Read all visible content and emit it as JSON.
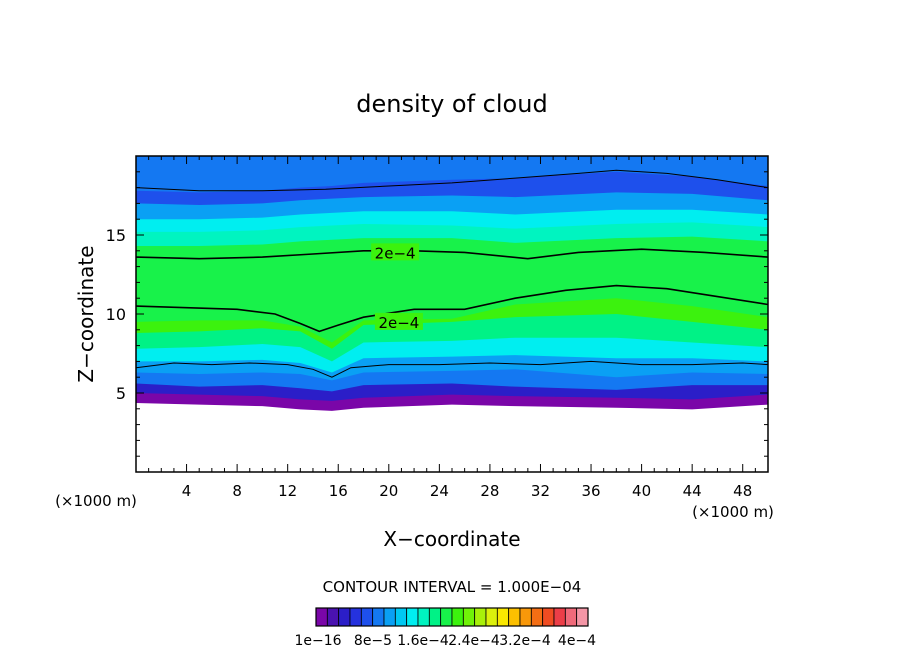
{
  "chart_data": {
    "type": "heatmap",
    "title": "density of cloud",
    "xlabel": "X−coordinate",
    "ylabel": "Z−coordinate",
    "xunit_left": "(×1000 m)",
    "xunit_right": "(×1000 m)",
    "xlim": [
      0,
      50
    ],
    "ylim": [
      0,
      20
    ],
    "xticks": [
      4,
      8,
      12,
      16,
      20,
      24,
      28,
      32,
      36,
      40,
      44,
      48
    ],
    "yticks": [
      5,
      10,
      15
    ],
    "contour_interval_text": "CONTOUR INTERVAL = 1.000E−04",
    "colorbar_labels": [
      "1e−16",
      "8e−5",
      "1.6e−4",
      "2.4e−4",
      "3.2e−4",
      "4e−4"
    ],
    "colorbar_colors": [
      "#7a06a8",
      "#4a12b0",
      "#2b1ec8",
      "#2532de",
      "#1e50ec",
      "#1478f2",
      "#0aa0f4",
      "#00c8f2",
      "#00eef0",
      "#00f4c0",
      "#00f286",
      "#18f24a",
      "#3cf20e",
      "#70f208",
      "#a8f00a",
      "#dcf00c",
      "#fae800",
      "#fcc000",
      "#f8980a",
      "#f46e14",
      "#f04c22",
      "#ec3e48",
      "#f06a7a",
      "#f496a6"
    ],
    "contour_labels": [
      "2e−4",
      "2e−4"
    ],
    "field_bands": [
      {
        "name": "base-purple",
        "color": "#7a06a8",
        "z": [
          5.0,
          4.9,
          4.8,
          4.6,
          4.5,
          4.7,
          4.9,
          4.8,
          4.7,
          4.6,
          4.9
        ]
      },
      {
        "name": "dark-blue",
        "color": "#2b1ec8",
        "z": [
          5.6,
          5.4,
          5.5,
          5.3,
          5.1,
          5.5,
          5.6,
          5.4,
          5.2,
          5.5,
          5.5
        ]
      },
      {
        "name": "blue",
        "color": "#1478f2",
        "z": [
          6.3,
          6.2,
          6.3,
          6.2,
          5.8,
          6.3,
          6.4,
          6.5,
          6.0,
          6.3,
          6.2
        ]
      },
      {
        "name": "light-blue",
        "color": "#0aa0f4",
        "z": [
          7.0,
          7.0,
          7.1,
          6.9,
          6.3,
          7.2,
          7.3,
          7.4,
          7.2,
          7.2,
          7.0
        ]
      },
      {
        "name": "cyan",
        "color": "#00eef0",
        "z": [
          7.8,
          7.9,
          8.1,
          7.9,
          7.0,
          8.2,
          8.3,
          8.5,
          8.5,
          8.2,
          7.9
        ]
      },
      {
        "name": "aqua-green",
        "color": "#00f286",
        "z": [
          8.8,
          8.9,
          9.1,
          8.9,
          7.8,
          9.3,
          9.5,
          9.8,
          10.0,
          9.5,
          9.0
        ]
      },
      {
        "name": "green",
        "color": "#3cf20e",
        "z": [
          9.5,
          9.6,
          9.6,
          9.2,
          8.2,
          9.6,
          9.7,
          10.6,
          11.0,
          10.5,
          9.8
        ]
      },
      {
        "name": "upper-green",
        "color": "#18f24a",
        "z": [
          14.3,
          14.3,
          14.4,
          14.6,
          14.7,
          14.8,
          14.8,
          14.5,
          14.8,
          14.9,
          14.6
        ]
      },
      {
        "name": "upper-aqua",
        "color": "#00f4c0",
        "z": [
          15.2,
          15.2,
          15.3,
          15.5,
          15.6,
          15.7,
          15.6,
          15.4,
          15.7,
          15.8,
          15.5
        ]
      },
      {
        "name": "upper-cyan",
        "color": "#00eef0",
        "z": [
          16.0,
          16.0,
          16.1,
          16.3,
          16.4,
          16.5,
          16.5,
          16.3,
          16.6,
          16.6,
          16.3
        ]
      },
      {
        "name": "upper-light-blue",
        "color": "#0aa0f4",
        "z": [
          17.0,
          16.9,
          17.0,
          17.2,
          17.3,
          17.4,
          17.5,
          17.4,
          17.7,
          17.6,
          17.2
        ]
      },
      {
        "name": "upper-blue",
        "color": "#1e50ec",
        "z": [
          17.8,
          17.7,
          17.8,
          18.0,
          18.1,
          18.3,
          18.5,
          18.6,
          19.0,
          18.7,
          18.1
        ]
      }
    ],
    "field_x": [
      0,
      5,
      10,
      13,
      15.5,
      18,
      25,
      30,
      38,
      44,
      50
    ],
    "contours": [
      {
        "name": "contour-top",
        "x": [
          0,
          5,
          10,
          15,
          20,
          25,
          30,
          35,
          38,
          42,
          46,
          50
        ],
        "z": [
          18.0,
          17.8,
          17.8,
          17.9,
          18.1,
          18.3,
          18.6,
          18.9,
          19.1,
          18.9,
          18.5,
          18.0
        ]
      },
      {
        "name": "contour-upper-2e-4",
        "x": [
          0,
          5,
          10,
          14,
          18,
          22,
          26,
          31,
          35,
          40,
          45,
          50
        ],
        "z": [
          13.6,
          13.5,
          13.6,
          13.8,
          14.0,
          14.0,
          13.9,
          13.5,
          13.9,
          14.1,
          13.9,
          13.6
        ]
      },
      {
        "name": "contour-lower-2e-4",
        "x": [
          0,
          4,
          8,
          11,
          13,
          14.5,
          16,
          18,
          22,
          26,
          30,
          34,
          38,
          42,
          46,
          50
        ],
        "z": [
          10.5,
          10.4,
          10.3,
          10.0,
          9.4,
          8.9,
          9.3,
          9.8,
          10.3,
          10.3,
          11.0,
          11.5,
          11.8,
          11.6,
          11.1,
          10.6
        ]
      },
      {
        "name": "contour-lower-edge",
        "x": [
          0,
          3,
          6,
          9,
          12,
          14,
          15.5,
          17,
          20,
          24,
          28,
          32,
          36,
          40,
          44,
          48,
          50
        ],
        "z": [
          6.6,
          6.9,
          6.8,
          6.9,
          6.8,
          6.5,
          6.0,
          6.6,
          6.8,
          6.8,
          6.9,
          6.8,
          7.0,
          6.8,
          6.8,
          6.9,
          6.8
        ]
      }
    ]
  }
}
